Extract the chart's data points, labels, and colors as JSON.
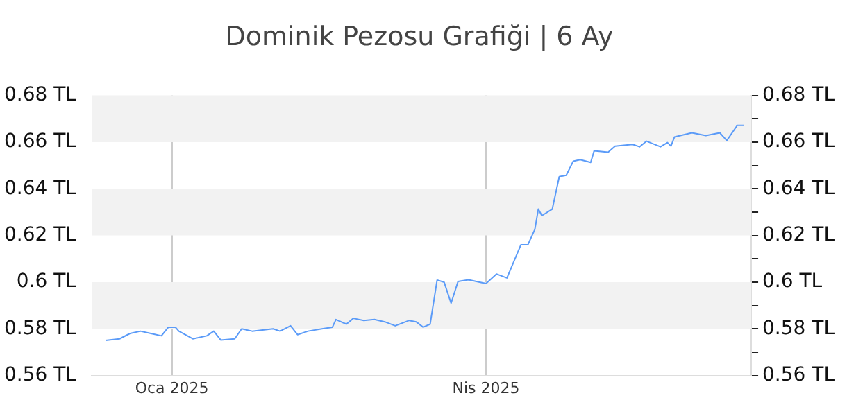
{
  "chart_data": {
    "type": "line",
    "title": "Dominik Pezosu Grafiği | 6 Ay",
    "x": [
      "2024-12-13",
      "2024-12-17",
      "2024-12-20",
      "2024-12-23",
      "2024-12-26",
      "2024-12-29",
      "2024-12-31",
      "2025-01-02",
      "2025-01-03",
      "2025-01-07",
      "2025-01-11",
      "2025-01-13",
      "2025-01-15",
      "2025-01-19",
      "2025-01-21",
      "2025-01-24",
      "2025-01-30",
      "2025-02-01",
      "2025-02-04",
      "2025-02-06",
      "2025-02-09",
      "2025-02-13",
      "2025-02-16",
      "2025-02-17",
      "2025-02-20",
      "2025-02-22",
      "2025-02-25",
      "2025-02-28",
      "2025-03-03",
      "2025-03-06",
      "2025-03-10",
      "2025-03-12",
      "2025-03-14",
      "2025-03-16",
      "2025-03-18",
      "2025-03-20",
      "2025-03-22",
      "2025-03-24",
      "2025-03-27",
      "2025-04-01",
      "2025-04-04",
      "2025-04-07",
      "2025-04-11",
      "2025-04-13",
      "2025-04-15",
      "2025-04-16",
      "2025-04-17",
      "2025-04-20",
      "2025-04-22",
      "2025-04-24",
      "2025-04-26",
      "2025-04-28",
      "2025-05-01",
      "2025-05-02",
      "2025-05-06",
      "2025-05-08",
      "2025-05-13",
      "2025-05-15",
      "2025-05-17",
      "2025-05-21",
      "2025-05-23",
      "2025-05-24",
      "2025-05-25",
      "2025-05-30",
      "2025-06-03",
      "2025-06-07",
      "2025-06-09",
      "2025-06-12",
      "2025-06-14"
    ],
    "series": [
      {
        "color": "#5b9bf8",
        "values": [
          0.575,
          0.5757,
          0.578,
          0.579,
          0.578,
          0.577,
          0.5807,
          0.5807,
          0.579,
          0.5757,
          0.577,
          0.579,
          0.5752,
          0.5757,
          0.58,
          0.579,
          0.58,
          0.579,
          0.5813,
          0.5775,
          0.579,
          0.58,
          0.5807,
          0.584,
          0.582,
          0.5845,
          0.5836,
          0.584,
          0.583,
          0.5813,
          0.5836,
          0.583,
          0.5807,
          0.582,
          0.6009,
          0.6,
          0.591,
          0.6003,
          0.601,
          0.5994,
          0.6035,
          0.6018,
          0.616,
          0.616,
          0.6226,
          0.6313,
          0.6285,
          0.6313,
          0.6452,
          0.6458,
          0.6518,
          0.6525,
          0.6513,
          0.6563,
          0.6557,
          0.6583,
          0.659,
          0.658,
          0.6604,
          0.658,
          0.6598,
          0.6583,
          0.6622,
          0.664,
          0.6628,
          0.664,
          0.6607,
          0.6672,
          0.6672
        ]
      }
    ],
    "xlim": [
      "2024-12-09",
      "2025-06-16"
    ],
    "xticks": [
      {
        "value": "2025-01-01",
        "label": "Oca 2025"
      },
      {
        "value": "2025-04-01",
        "label": "Nis 2025"
      }
    ],
    "ylim": [
      0.56,
      0.68
    ],
    "yticks": [
      {
        "value": 0.56,
        "label": "0.56 TL"
      },
      {
        "value": 0.58,
        "label": "0.58 TL"
      },
      {
        "value": 0.6,
        "label": "0.6 TL"
      },
      {
        "value": 0.62,
        "label": "0.62 TL"
      },
      {
        "value": 0.64,
        "label": "0.64 TL"
      },
      {
        "value": 0.66,
        "label": "0.66 TL"
      },
      {
        "value": 0.68,
        "label": "0.68 TL"
      }
    ],
    "y2lim": [
      0.56,
      0.68
    ],
    "y2ticks": [
      {
        "value": 0.56,
        "label": "0.56 TL"
      },
      {
        "value": 0.57,
        "label": null
      },
      {
        "value": 0.58,
        "label": "0.58 TL"
      },
      {
        "value": 0.59,
        "label": null
      },
      {
        "value": 0.6,
        "label": "0.6 TL"
      },
      {
        "value": 0.61,
        "label": null
      },
      {
        "value": 0.62,
        "label": "0.62 TL"
      },
      {
        "value": 0.63,
        "label": null
      },
      {
        "value": 0.64,
        "label": "0.64 TL"
      },
      {
        "value": 0.65,
        "label": null
      },
      {
        "value": 0.66,
        "label": "0.66 TL"
      },
      {
        "value": 0.67,
        "label": null
      },
      {
        "value": 0.68,
        "label": "0.68 TL"
      }
    ],
    "grid": true,
    "legend": false,
    "marker": "none",
    "line_style": "solid"
  }
}
